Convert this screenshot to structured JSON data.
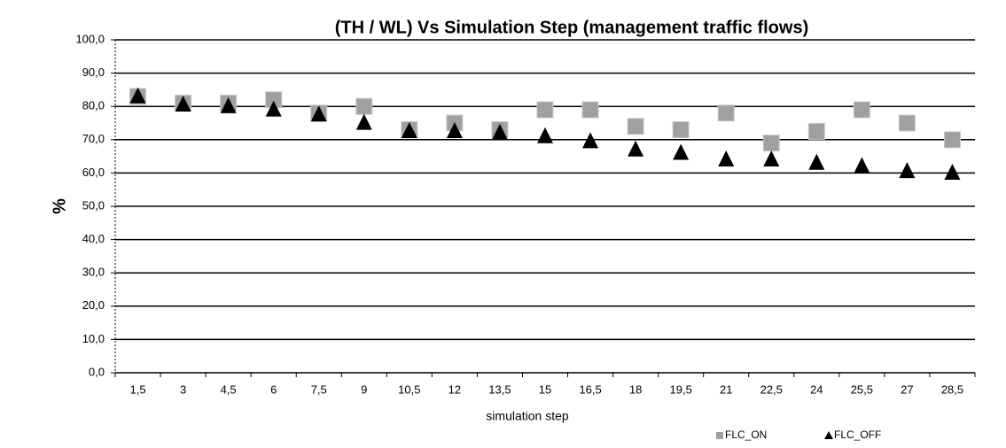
{
  "chart_data": {
    "type": "scatter",
    "title": "(TH / WL) Vs Simulation Step (management traffic flows)",
    "x_label": "simulation step",
    "y_label": "%",
    "categories": [
      "1,5",
      "3",
      "4,5",
      "6",
      "7,5",
      "9",
      "10,5",
      "12",
      "13,5",
      "15",
      "16,5",
      "18",
      "19,5",
      "21",
      "22,5",
      "24",
      "25,5",
      "27",
      "28,5"
    ],
    "series": [
      {
        "name": "FLC_ON",
        "color": "#a0a0a0",
        "marker": "square",
        "values": [
          83,
          81,
          81,
          82,
          78,
          80,
          73,
          75,
          73,
          79,
          79,
          74,
          73,
          78,
          69,
          72.5,
          79,
          75,
          70
        ]
      },
      {
        "name": "FLC_OFF",
        "color": "#000000",
        "marker": "triangle",
        "values": [
          83,
          80.5,
          80,
          79,
          77.5,
          75,
          72.5,
          72.5,
          72,
          71,
          69.5,
          67,
          66,
          64,
          64,
          63,
          62,
          60.5,
          60
        ]
      }
    ],
    "ylim": [
      0,
      100
    ],
    "yticks": [
      {
        "value": 0,
        "label": "0,0"
      },
      {
        "value": 10,
        "label": "10,0"
      },
      {
        "value": 20,
        "label": "20,0"
      },
      {
        "value": 30,
        "label": "30,0"
      },
      {
        "value": 40,
        "label": "40,0"
      },
      {
        "value": 50,
        "label": "50,0"
      },
      {
        "value": 60,
        "label": "60,0"
      },
      {
        "value": 70,
        "label": "70,0"
      },
      {
        "value": 80,
        "label": "80,0"
      },
      {
        "value": 90,
        "label": "90,0"
      },
      {
        "value": 100,
        "label": "100,0"
      }
    ],
    "grid": true,
    "legend": "bottom-right"
  }
}
